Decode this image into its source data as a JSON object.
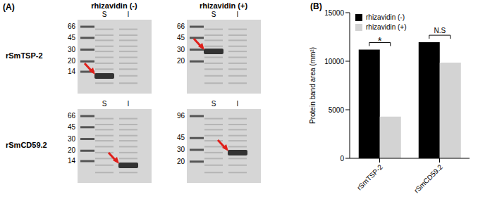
{
  "panel_a": {
    "label": "(A)",
    "columns": [
      "rhizavidin (-)",
      "rhizavidin (+)"
    ],
    "rows": [
      "rSmTSP-2",
      "rSmCD59.2"
    ],
    "lanes": [
      "S",
      "I"
    ],
    "markers": [
      [
        [
          66,
          45,
          30,
          20,
          14
        ],
        [
          66,
          45,
          30,
          20
        ]
      ],
      [
        [
          66,
          45,
          30,
          20,
          14
        ],
        [
          96,
          45,
          30,
          20
        ]
      ]
    ]
  },
  "chart_data": {
    "type": "bar",
    "title": "(B)",
    "categories": [
      "rSmTSP-2",
      "rSmCD59.2"
    ],
    "series": [
      {
        "name": "rhizavidin (-)",
        "color": "#000000",
        "values": [
          11200,
          11950
        ]
      },
      {
        "name": "rhizavidin (+)",
        "color": "#d3d3d3",
        "values": [
          4300,
          9850
        ]
      }
    ],
    "y_label": "Protein band area (mm²)",
    "ylim": [
      0,
      15000
    ],
    "yticks": [
      0,
      5000,
      10000,
      15000
    ],
    "legend": "top-left",
    "annotations": [
      {
        "category": "rSmTSP-2",
        "text": "*"
      },
      {
        "category": "rSmCD59.2",
        "text": "N.S"
      }
    ]
  }
}
